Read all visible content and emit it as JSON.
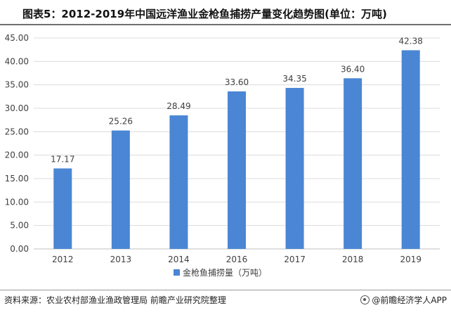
{
  "header": {
    "title": "图表5：2012-2019年中国远洋渔业金枪鱼捕捞产量变化趋势图(单位：万吨)"
  },
  "footer": {
    "source": "资料来源：农业农村部渔业渔政管理局 前瞻产业研究院整理",
    "brand": "@前瞻经济学人APP"
  },
  "colors": {
    "bar": "#4a86d4",
    "grid": "#dcdcdc",
    "axis": "#bfbfbf",
    "text": "#404040"
  },
  "chart_data": {
    "type": "bar",
    "title": "图表5：2012-2019年中国远洋渔业金枪鱼捕捞产量变化趋势图(单位：万吨)",
    "categories": [
      "2012",
      "2013",
      "2014",
      "2016",
      "2017",
      "2018",
      "2019"
    ],
    "series": [
      {
        "name": "金枪鱼捕捞量（万吨）",
        "values": [
          17.17,
          25.26,
          28.49,
          33.6,
          34.35,
          36.4,
          42.38
        ],
        "labels": [
          "17.17",
          "25.26",
          "28.49",
          "33.60",
          "34.35",
          "36.40",
          "42.38"
        ]
      }
    ],
    "ylim": [
      0,
      45
    ],
    "yticks": [
      "0.00",
      "5.00",
      "10.00",
      "15.00",
      "20.00",
      "25.00",
      "30.00",
      "35.00",
      "40.00",
      "45.00"
    ],
    "ytick_values": [
      0,
      5,
      10,
      15,
      20,
      25,
      30,
      35,
      40,
      45
    ],
    "xlabel": "",
    "ylabel": "",
    "grid": true,
    "legend": "bottom-center"
  }
}
